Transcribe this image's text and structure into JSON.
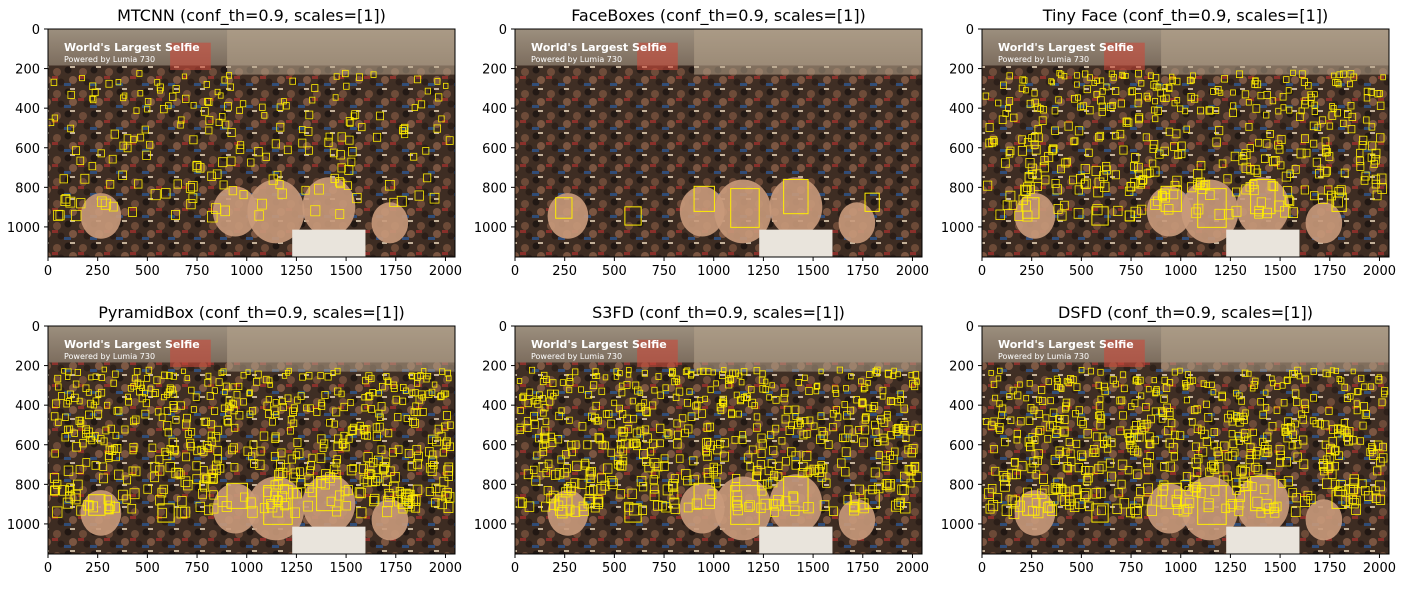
{
  "figure": {
    "panels": [
      {
        "title": "MTCNN (conf_th=0.9, scales=[1])",
        "density": 0.35,
        "big_faces": false
      },
      {
        "title": "FaceBoxes (conf_th=0.9, scales=[1])",
        "density": 0.0,
        "big_faces": true
      },
      {
        "title": "Tiny Face (conf_th=0.9, scales=[1])",
        "density": 0.75,
        "big_faces": true
      },
      {
        "title": "PyramidBox (conf_th=0.9, scales=[1])",
        "density": 1.0,
        "big_faces": true
      },
      {
        "title": "S3FD (conf_th=0.9, scales=[1])",
        "density": 1.0,
        "big_faces": true
      },
      {
        "title": "DSFD (conf_th=0.9, scales=[1])",
        "density": 1.0,
        "big_faces": true
      }
    ],
    "x_ticks": [
      "0",
      "250",
      "500",
      "750",
      "1000",
      "1250",
      "1500",
      "1750",
      "2000"
    ],
    "y_ticks": [
      "0",
      "200",
      "400",
      "600",
      "800",
      "1000"
    ],
    "x_tick_values": [
      0,
      250,
      500,
      750,
      1000,
      1250,
      1500,
      1750,
      2000
    ],
    "y_tick_values": [
      0,
      200,
      400,
      600,
      800,
      1000
    ],
    "xlim": [
      0,
      2048
    ],
    "ylim": [
      1152,
      0
    ],
    "image_caption_line1": "World's Largest Selfie",
    "image_caption_line2": "Powered by Lumia 730",
    "box_color": "#ffee00"
  }
}
